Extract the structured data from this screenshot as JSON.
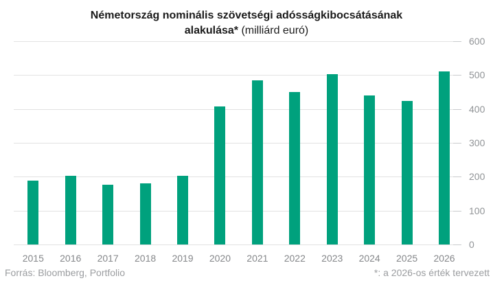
{
  "title": {
    "line1": "Németország nominális szövetségi adósságkibocsátásának",
    "line2_bold": "alakulása*",
    "line2_regular": " (milliárd euró)"
  },
  "footer": {
    "source": "Forrás: Bloomberg, Portfolio",
    "note": "*: a 2026-os érték tervezett"
  },
  "chart_data": {
    "type": "bar",
    "title": "Németország nominális szövetségi adósságkibocsátásának alakulása* (milliárd euró)",
    "unit": "milliárd euró",
    "categories": [
      "2015",
      "2016",
      "2017",
      "2018",
      "2019",
      "2020",
      "2021",
      "2022",
      "2023",
      "2024",
      "2025",
      "2026"
    ],
    "values": [
      188,
      203,
      176,
      181,
      203,
      407,
      484,
      450,
      502,
      440,
      424,
      511
    ],
    "xlabel": "",
    "ylabel": "",
    "ylim": [
      0,
      600
    ],
    "yticks": [
      0,
      100,
      200,
      300,
      400,
      500,
      600
    ],
    "grid": true,
    "legend": false,
    "y_axis_side": "right",
    "bar_color": "#00a17d",
    "note": "*: a 2026-os érték tervezett",
    "source": "Forrás: Bloomberg, Portfolio"
  },
  "colors": {
    "bar": "#00a17d",
    "grid": "#e2e2e2",
    "tick": "#c9cbcd",
    "axis_text": "#8d8f92",
    "footer_text": "#9a9c9f",
    "title_text": "#1a1a1a"
  }
}
